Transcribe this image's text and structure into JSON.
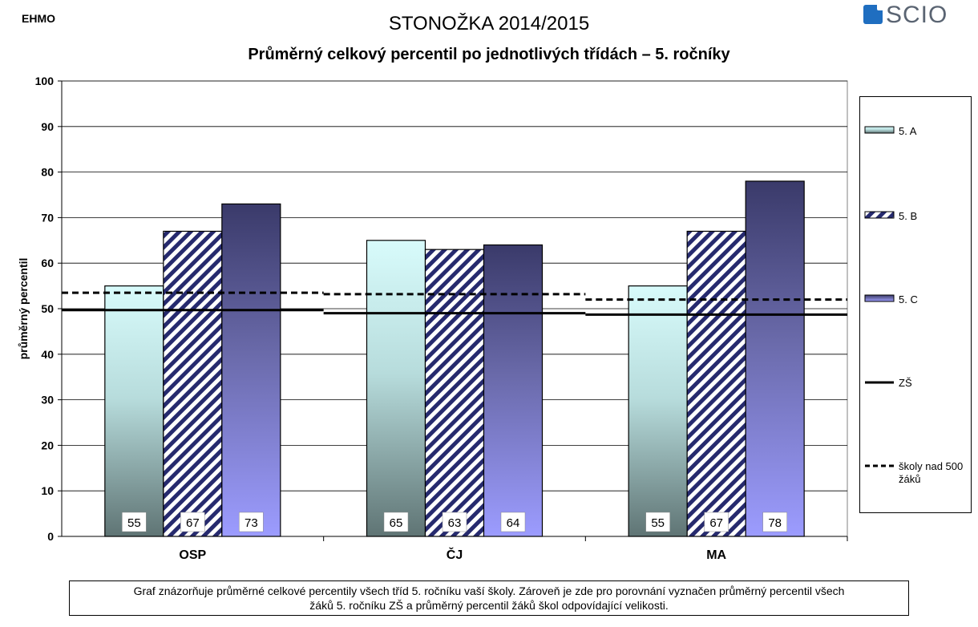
{
  "header": {
    "corner_label": "EHMO",
    "logo_text": "SCIO",
    "title": "STONOŽKA 2014/2015",
    "subtitle": "Průměrný celkový percentil po jednotlivých třídách – 5. ročníky"
  },
  "chart_data": {
    "type": "bar",
    "ylabel": "průměrný percentil",
    "ylim": [
      0,
      100
    ],
    "yticks": [
      0,
      10,
      20,
      30,
      40,
      50,
      60,
      70,
      80,
      90,
      100
    ],
    "grid": true,
    "legend_position": "right",
    "categories": [
      "OSP",
      "ČJ",
      "MA"
    ],
    "series": [
      {
        "name": "5. A",
        "values": [
          55,
          65,
          55
        ],
        "labels": [
          "55",
          "65",
          "55"
        ]
      },
      {
        "name": "5. B",
        "values": [
          67,
          63,
          67
        ],
        "labels": [
          "67",
          "63",
          "67"
        ]
      },
      {
        "name": "5. C",
        "values": [
          73,
          64,
          78
        ],
        "labels": [
          "73",
          "64",
          "78"
        ]
      }
    ],
    "reference_lines": [
      {
        "name": "ZŠ",
        "style": "solid",
        "values": [
          49.7,
          49,
          48.7
        ]
      },
      {
        "name": "školy nad 500 žáků",
        "style": "dashed",
        "values": [
          53.5,
          53.2,
          52
        ]
      }
    ]
  },
  "legend": {
    "items": [
      "5. A",
      "5. B",
      "5. C",
      "ZŠ",
      "školy nad 500",
      "žáků"
    ]
  },
  "footer": {
    "note_line1": "Graf znázorňuje průměrné celkové percentily všech tříd 5. ročníku vaší školy. Zároveň je zde pro porovnání vyznačen průměrný percentil všech",
    "note_line2": "žáků 5. ročníku ZŠ a průměrný percentil žáků škol odpovídající velikosti."
  },
  "colors": {
    "grid": "#000000",
    "hatch": "#222266"
  }
}
